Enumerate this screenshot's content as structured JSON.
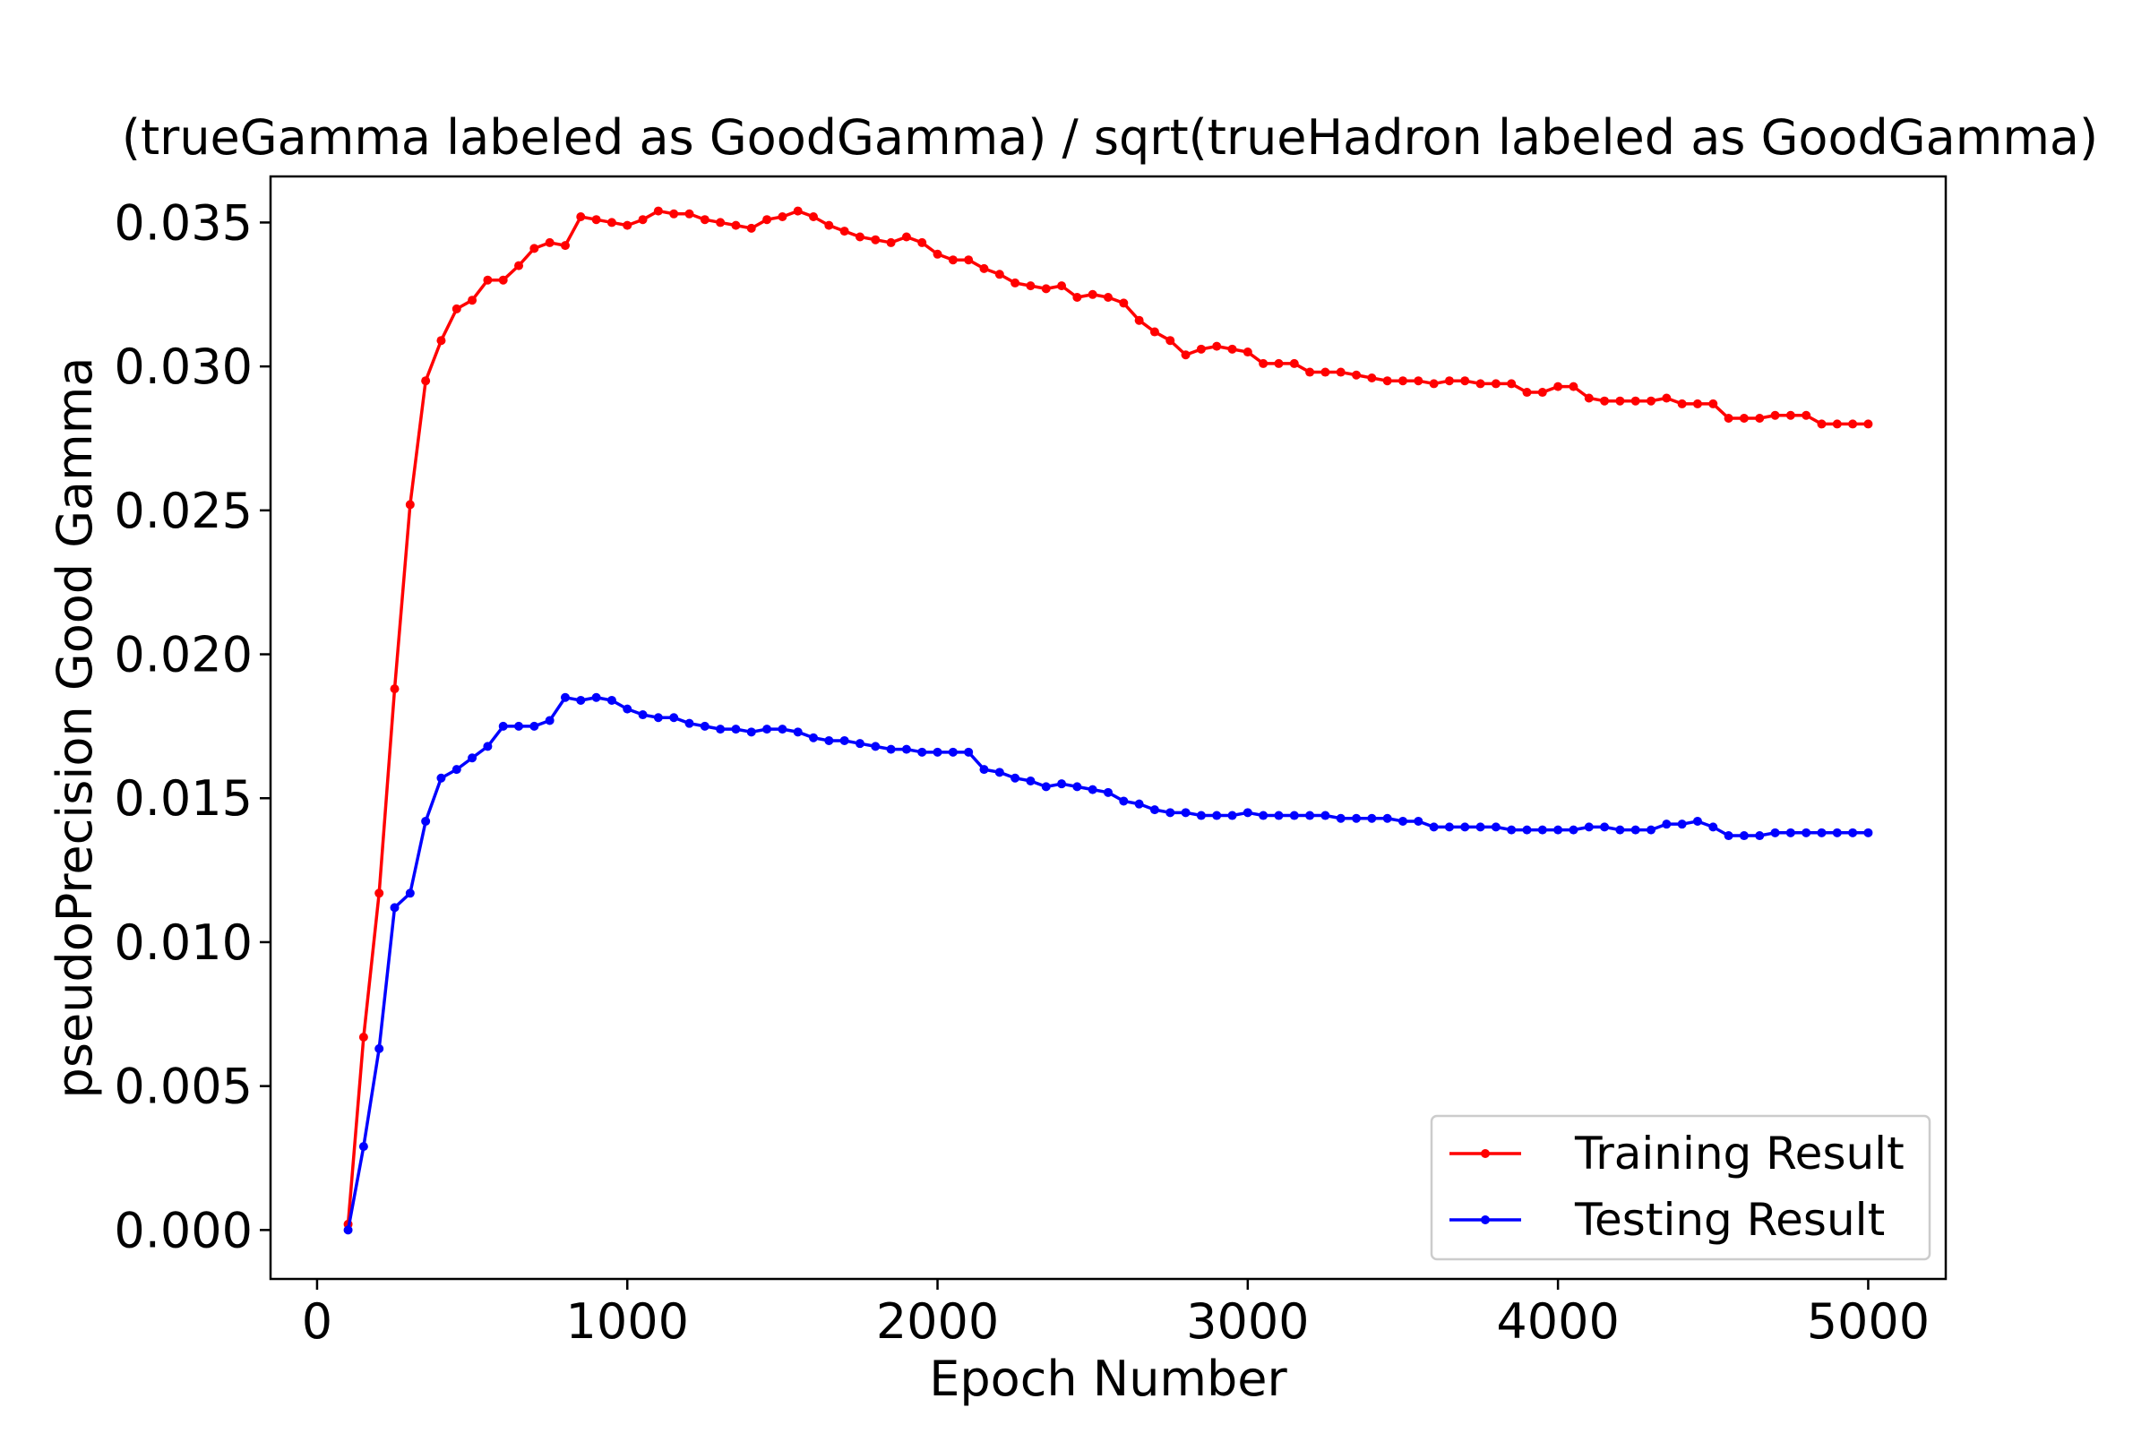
{
  "chart_data": {
    "type": "line",
    "title": "(trueGamma labeled as GoodGamma) / sqrt(trueHadron labeled as GoodGamma)",
    "xlabel": "Epoch Number",
    "ylabel": "pseudoPrecision Good Gamma",
    "xlim": [
      -150,
      5250
    ],
    "ylim": [
      -0.0017,
      0.0366
    ],
    "xticks": [
      0,
      1000,
      2000,
      3000,
      4000,
      5000
    ],
    "xtick_labels": [
      "0",
      "1000",
      "2000",
      "3000",
      "4000",
      "5000"
    ],
    "yticks": [
      0.0,
      0.005,
      0.01,
      0.015,
      0.02,
      0.025,
      0.03,
      0.035
    ],
    "ytick_labels": [
      "0.000",
      "0.005",
      "0.010",
      "0.015",
      "0.020",
      "0.025",
      "0.030",
      "0.035"
    ],
    "grid": false,
    "legend_position": "lower-right",
    "x": [
      100,
      150,
      200,
      250,
      300,
      350,
      400,
      450,
      500,
      550,
      600,
      650,
      700,
      750,
      800,
      850,
      900,
      950,
      1000,
      1050,
      1100,
      1150,
      1200,
      1250,
      1300,
      1350,
      1400,
      1450,
      1500,
      1550,
      1600,
      1650,
      1700,
      1750,
      1800,
      1850,
      1900,
      1950,
      2000,
      2050,
      2100,
      2150,
      2200,
      2250,
      2300,
      2350,
      2400,
      2450,
      2500,
      2550,
      2600,
      2650,
      2700,
      2750,
      2800,
      2850,
      2900,
      2950,
      3000,
      3050,
      3100,
      3150,
      3200,
      3250,
      3300,
      3350,
      3400,
      3450,
      3500,
      3550,
      3600,
      3650,
      3700,
      3750,
      3800,
      3850,
      3900,
      3950,
      4000,
      4050,
      4100,
      4150,
      4200,
      4250,
      4300,
      4350,
      4400,
      4450,
      4500,
      4550,
      4600,
      4650,
      4700,
      4750,
      4800,
      4850,
      4900,
      4950,
      5000
    ],
    "series": [
      {
        "name": "Training Result",
        "color": "#ff0000",
        "values": [
          0.0002,
          0.0067,
          0.0117,
          0.0188,
          0.0252,
          0.0295,
          0.0309,
          0.032,
          0.0323,
          0.033,
          0.033,
          0.0335,
          0.0341,
          0.0343,
          0.0342,
          0.0352,
          0.0351,
          0.035,
          0.0349,
          0.0351,
          0.0354,
          0.0353,
          0.0353,
          0.0351,
          0.035,
          0.0349,
          0.0348,
          0.0351,
          0.0352,
          0.0354,
          0.0352,
          0.0349,
          0.0347,
          0.0345,
          0.0344,
          0.0343,
          0.0345,
          0.0343,
          0.0339,
          0.0337,
          0.0337,
          0.0334,
          0.0332,
          0.0329,
          0.0328,
          0.0327,
          0.0328,
          0.0324,
          0.0325,
          0.0324,
          0.0322,
          0.0316,
          0.0312,
          0.0309,
          0.0304,
          0.0306,
          0.0307,
          0.0306,
          0.0305,
          0.0301,
          0.0301,
          0.0301,
          0.0298,
          0.0298,
          0.0298,
          0.0297,
          0.0296,
          0.0295,
          0.0295,
          0.0295,
          0.0294,
          0.0295,
          0.0295,
          0.0294,
          0.0294,
          0.0294,
          0.0291,
          0.0291,
          0.0293,
          0.0293,
          0.0289,
          0.0288,
          0.0288,
          0.0288,
          0.0288,
          0.0289,
          0.0287,
          0.0287,
          0.0287,
          0.0282,
          0.0282,
          0.0282,
          0.0283,
          0.0283,
          0.0283,
          0.028,
          0.028,
          0.028,
          0.028
        ]
      },
      {
        "name": "Testing Result",
        "color": "#0000ff",
        "values": [
          0.0,
          0.0029,
          0.0063,
          0.0112,
          0.0117,
          0.0142,
          0.0157,
          0.016,
          0.0164,
          0.0168,
          0.0175,
          0.0175,
          0.0175,
          0.0177,
          0.0185,
          0.0184,
          0.0185,
          0.0184,
          0.0181,
          0.0179,
          0.0178,
          0.0178,
          0.0176,
          0.0175,
          0.0174,
          0.0174,
          0.0173,
          0.0174,
          0.0174,
          0.0173,
          0.0171,
          0.017,
          0.017,
          0.0169,
          0.0168,
          0.0167,
          0.0167,
          0.0166,
          0.0166,
          0.0166,
          0.0166,
          0.016,
          0.0159,
          0.0157,
          0.0156,
          0.0154,
          0.0155,
          0.0154,
          0.0153,
          0.0152,
          0.0149,
          0.0148,
          0.0146,
          0.0145,
          0.0145,
          0.0144,
          0.0144,
          0.0144,
          0.0145,
          0.0144,
          0.0144,
          0.0144,
          0.0144,
          0.0144,
          0.0143,
          0.0143,
          0.0143,
          0.0143,
          0.0142,
          0.0142,
          0.014,
          0.014,
          0.014,
          0.014,
          0.014,
          0.0139,
          0.0139,
          0.0139,
          0.0139,
          0.0139,
          0.014,
          0.014,
          0.0139,
          0.0139,
          0.0139,
          0.0141,
          0.0141,
          0.0142,
          0.014,
          0.0137,
          0.0137,
          0.0137,
          0.0138,
          0.0138,
          0.0138,
          0.0138,
          0.0138,
          0.0138,
          0.0138
        ]
      }
    ]
  }
}
